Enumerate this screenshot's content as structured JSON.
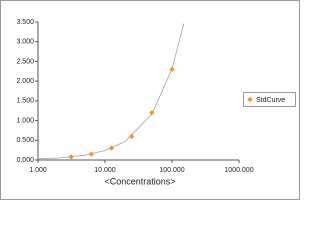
{
  "chart_data": {
    "type": "scatter",
    "xlabel": "<Concentrations>",
    "xscale": "log",
    "xlim": [
      1,
      1000
    ],
    "ylim": [
      0,
      3.5
    ],
    "xticks": [
      {
        "value": 1,
        "label": "1.000"
      },
      {
        "value": 10,
        "label": "10.000"
      },
      {
        "value": 100,
        "label": "100.000"
      },
      {
        "value": 1000,
        "label": "1000.000"
      }
    ],
    "yticks": [
      {
        "value": 0,
        "label": "0.000"
      },
      {
        "value": 0.5,
        "label": "0.500"
      },
      {
        "value": 1,
        "label": "1.000"
      },
      {
        "value": 1.5,
        "label": "1.500"
      },
      {
        "value": 2,
        "label": "2.000"
      },
      {
        "value": 2.5,
        "label": "2.500"
      },
      {
        "value": 3,
        "label": "3.000"
      },
      {
        "value": 3.5,
        "label": "3.500"
      }
    ],
    "series": [
      {
        "name": "StdCurve",
        "color": "#f0921e",
        "x": [
          3.125,
          6.25,
          12.5,
          25,
          50,
          100
        ],
        "values": [
          0.08,
          0.15,
          0.3,
          0.6,
          1.2,
          2.3
        ]
      }
    ],
    "fit": {
      "color": "#a0a0a0",
      "x": [
        1,
        2,
        5,
        10,
        20,
        50,
        100,
        150
      ],
      "y": [
        0.03,
        0.05,
        0.12,
        0.24,
        0.47,
        1.16,
        2.31,
        3.46
      ]
    },
    "legend": "right",
    "grid": false
  }
}
